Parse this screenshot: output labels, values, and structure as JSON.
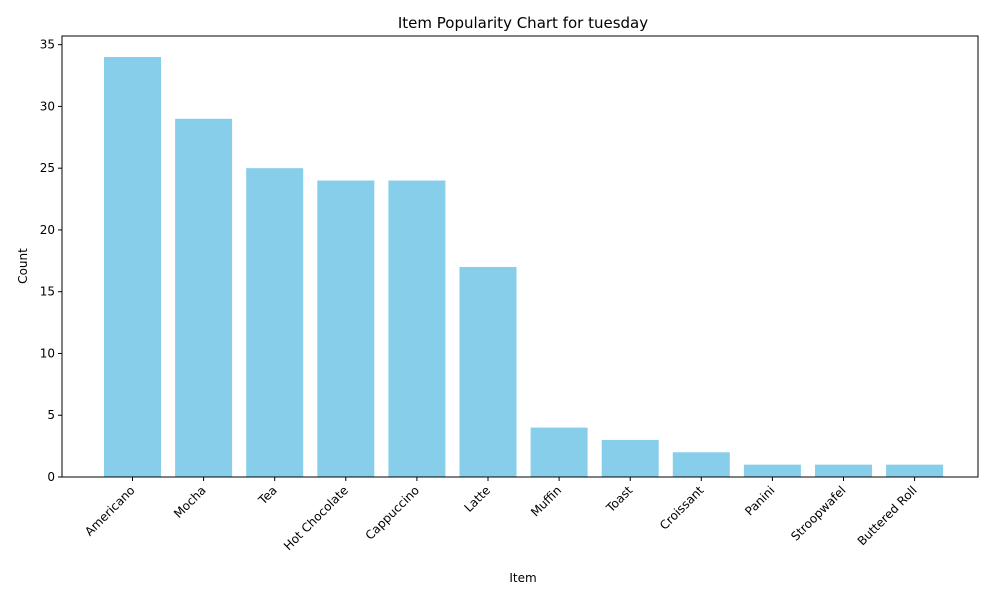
{
  "chart_data": {
    "type": "bar",
    "title": "Item Popularity Chart for tuesday",
    "xlabel": "Item",
    "ylabel": "Count",
    "categories": [
      "Americano",
      "Mocha",
      "Tea",
      "Hot Chocolate",
      "Cappuccino",
      "Latte",
      "Muffin",
      "Toast",
      "Croissant",
      "Panini",
      "Stroopwafel",
      "Buttered Roll"
    ],
    "values": [
      34,
      29,
      25,
      24,
      24,
      17,
      4,
      3,
      2,
      1,
      1,
      1
    ],
    "ylim": [
      0,
      35.7
    ],
    "yticks": [
      0,
      5,
      10,
      15,
      20,
      25,
      30,
      35
    ],
    "bar_color": "#87ceeb",
    "grid": false,
    "legend": "none"
  }
}
